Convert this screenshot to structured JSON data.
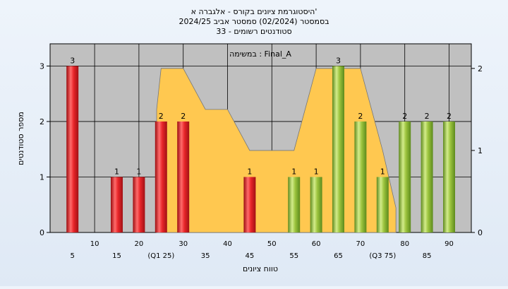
{
  "chart_data": {
    "type": "bar",
    "title_lines": [
      "היסטוגרמת ציונים בקורס - אלגברה א'",
      "בסמסטר  (02/2024)  סמסטר אביב 2024/25",
      "סטודנטים רשומים - 33"
    ],
    "plot_label": "במשימה : Final_A",
    "xlabel": "טווח ציונים",
    "ylabel": "מספר סטודנטים",
    "ylim": [
      0,
      3.4
    ],
    "y_ticks": [
      "0",
      "1",
      "2",
      "3"
    ],
    "y2lim": [
      0,
      2.3
    ],
    "y2_ticks": [
      "0",
      "1",
      "2"
    ],
    "x_ticks_upper": [
      "10",
      "20",
      "30",
      "40",
      "50",
      "60",
      "70",
      "80",
      "90"
    ],
    "x_ticks_lower": [
      "5",
      "15",
      "(Q1 25)",
      "35",
      "45",
      "55",
      "65",
      "(Q3 75)",
      "85"
    ],
    "grid": true,
    "background_color": "#c0c0c0",
    "colors": {
      "below_median": "#e8262a",
      "above_median": "#9cc43e",
      "density_area": "#ffc850"
    },
    "bars": [
      {
        "x": 5,
        "value": 3,
        "label": "3",
        "group": "below_median"
      },
      {
        "x": 15,
        "value": 1,
        "label": "1",
        "group": "below_median"
      },
      {
        "x": 20,
        "value": 1,
        "label": "1",
        "group": "below_median"
      },
      {
        "x": 25,
        "value": 2,
        "label": "2",
        "group": "below_median"
      },
      {
        "x": 30,
        "value": 2,
        "label": "2",
        "group": "below_median"
      },
      {
        "x": 45,
        "value": 1,
        "label": "1",
        "group": "below_median"
      },
      {
        "x": 55,
        "value": 1,
        "label": "1",
        "group": "above_median"
      },
      {
        "x": 60,
        "value": 1,
        "label": "1",
        "group": "above_median"
      },
      {
        "x": 65,
        "value": 3,
        "label": "3",
        "group": "above_median"
      },
      {
        "x": 70,
        "value": 2,
        "label": "2",
        "group": "above_median"
      },
      {
        "x": 75,
        "value": 1,
        "label": "1",
        "group": "above_median"
      },
      {
        "x": 80,
        "value": 2,
        "label": "2",
        "group": "above_median"
      },
      {
        "x": 85,
        "value": 2,
        "label": "2",
        "group": "above_median"
      },
      {
        "x": 90,
        "value": 2,
        "label": "2",
        "group": "above_median"
      }
    ],
    "density_series": {
      "x": [
        24,
        25,
        27,
        30,
        35,
        40,
        45,
        50,
        55,
        60,
        65,
        70,
        75,
        78
      ],
      "y": [
        1.5,
        2.0,
        2.0,
        2.0,
        1.5,
        1.5,
        1.0,
        1.0,
        1.0,
        2.0,
        2.0,
        2.0,
        1.0,
        0.3
      ]
    }
  }
}
